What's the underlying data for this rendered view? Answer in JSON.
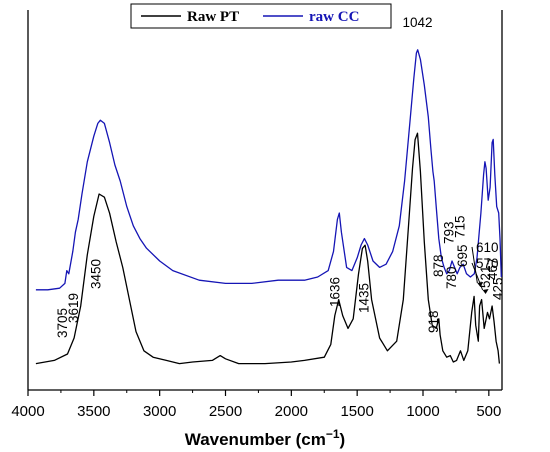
{
  "chart_data": {
    "type": "line",
    "title": "",
    "xlabel": "Wavenumber (cm⁻¹)",
    "xlabel_main": "Wavenumber (cm",
    "xlabel_sup": "−1",
    "xlabel_close": ")",
    "ylabel": "",
    "xlim": [
      4000,
      400
    ],
    "x_reversed": true,
    "x_ticks": [
      4000,
      3500,
      3000,
      2500,
      2000,
      1500,
      1000,
      500
    ],
    "x_tick_labels": [
      "4000",
      "3500",
      "3000",
      "2500",
      "2000",
      "1500",
      "1000",
      "500"
    ],
    "y_axis_visible": false,
    "grid": false,
    "legend_position": "top-center",
    "series": [
      {
        "name": "Raw PT",
        "color": "#000000",
        "points": [
          [
            3940,
            0.02
          ],
          [
            3800,
            0.03
          ],
          [
            3700,
            0.05
          ],
          [
            3650,
            0.1
          ],
          [
            3600,
            0.2
          ],
          [
            3550,
            0.36
          ],
          [
            3500,
            0.48
          ],
          [
            3460,
            0.55
          ],
          [
            3420,
            0.54
          ],
          [
            3380,
            0.49
          ],
          [
            3330,
            0.4
          ],
          [
            3280,
            0.32
          ],
          [
            3230,
            0.22
          ],
          [
            3180,
            0.12
          ],
          [
            3120,
            0.06
          ],
          [
            3050,
            0.04
          ],
          [
            2950,
            0.03
          ],
          [
            2850,
            0.02
          ],
          [
            2750,
            0.025
          ],
          [
            2600,
            0.03
          ],
          [
            2540,
            0.045
          ],
          [
            2500,
            0.035
          ],
          [
            2400,
            0.02
          ],
          [
            2200,
            0.02
          ],
          [
            2000,
            0.025
          ],
          [
            1900,
            0.03
          ],
          [
            1750,
            0.04
          ],
          [
            1700,
            0.08
          ],
          [
            1670,
            0.17
          ],
          [
            1640,
            0.22
          ],
          [
            1610,
            0.17
          ],
          [
            1570,
            0.13
          ],
          [
            1530,
            0.16
          ],
          [
            1490,
            0.3
          ],
          [
            1460,
            0.38
          ],
          [
            1440,
            0.39
          ],
          [
            1420,
            0.34
          ],
          [
            1390,
            0.22
          ],
          [
            1330,
            0.1
          ],
          [
            1270,
            0.06
          ],
          [
            1200,
            0.09
          ],
          [
            1150,
            0.22
          ],
          [
            1110,
            0.45
          ],
          [
            1080,
            0.63
          ],
          [
            1060,
            0.72
          ],
          [
            1042,
            0.74
          ],
          [
            1020,
            0.62
          ],
          [
            990,
            0.4
          ],
          [
            960,
            0.22
          ],
          [
            930,
            0.14
          ],
          [
            900,
            0.13
          ],
          [
            880,
            0.16
          ],
          [
            870,
            0.11
          ],
          [
            850,
            0.06
          ],
          [
            820,
            0.04
          ],
          [
            793,
            0.045
          ],
          [
            770,
            0.025
          ],
          [
            745,
            0.03
          ],
          [
            715,
            0.06
          ],
          [
            690,
            0.03
          ],
          [
            660,
            0.06
          ],
          [
            630,
            0.18
          ],
          [
            612,
            0.23
          ],
          [
            600,
            0.14
          ],
          [
            580,
            0.09
          ],
          [
            570,
            0.2
          ],
          [
            555,
            0.22
          ],
          [
            535,
            0.13
          ],
          [
            510,
            0.18
          ],
          [
            495,
            0.16
          ],
          [
            475,
            0.2
          ],
          [
            460,
            0.15
          ],
          [
            445,
            0.09
          ],
          [
            430,
            0.06
          ],
          [
            420,
            0.02
          ]
        ]
      },
      {
        "name": "raw CC",
        "color": "#1515b5",
        "points": [
          [
            3940,
            0.26
          ],
          [
            3850,
            0.26
          ],
          [
            3760,
            0.265
          ],
          [
            3720,
            0.28
          ],
          [
            3705,
            0.32
          ],
          [
            3690,
            0.31
          ],
          [
            3660,
            0.38
          ],
          [
            3640,
            0.44
          ],
          [
            3619,
            0.48
          ],
          [
            3590,
            0.56
          ],
          [
            3550,
            0.66
          ],
          [
            3500,
            0.74
          ],
          [
            3470,
            0.78
          ],
          [
            3450,
            0.79
          ],
          [
            3420,
            0.78
          ],
          [
            3380,
            0.72
          ],
          [
            3340,
            0.65
          ],
          [
            3300,
            0.6
          ],
          [
            3250,
            0.52
          ],
          [
            3200,
            0.46
          ],
          [
            3150,
            0.42
          ],
          [
            3100,
            0.39
          ],
          [
            3000,
            0.35
          ],
          [
            2900,
            0.32
          ],
          [
            2700,
            0.29
          ],
          [
            2500,
            0.28
          ],
          [
            2300,
            0.28
          ],
          [
            2100,
            0.29
          ],
          [
            1900,
            0.29
          ],
          [
            1800,
            0.3
          ],
          [
            1720,
            0.32
          ],
          [
            1680,
            0.38
          ],
          [
            1650,
            0.48
          ],
          [
            1636,
            0.5
          ],
          [
            1620,
            0.44
          ],
          [
            1580,
            0.33
          ],
          [
            1540,
            0.32
          ],
          [
            1500,
            0.36
          ],
          [
            1470,
            0.4
          ],
          [
            1445,
            0.42
          ],
          [
            1420,
            0.4
          ],
          [
            1380,
            0.35
          ],
          [
            1330,
            0.33
          ],
          [
            1280,
            0.34
          ],
          [
            1230,
            0.38
          ],
          [
            1180,
            0.46
          ],
          [
            1140,
            0.6
          ],
          [
            1100,
            0.78
          ],
          [
            1070,
            0.92
          ],
          [
            1050,
            1.0
          ],
          [
            1040,
            1.01
          ],
          [
            1020,
            0.98
          ],
          [
            990,
            0.9
          ],
          [
            960,
            0.8
          ],
          [
            940,
            0.7
          ],
          [
            925,
            0.63
          ],
          [
            915,
            0.6
          ],
          [
            900,
            0.52
          ],
          [
            880,
            0.42
          ],
          [
            860,
            0.36
          ],
          [
            840,
            0.33
          ],
          [
            820,
            0.31
          ],
          [
            800,
            0.32
          ],
          [
            780,
            0.35
          ],
          [
            760,
            0.33
          ],
          [
            740,
            0.31
          ],
          [
            720,
            0.33
          ],
          [
            695,
            0.34
          ],
          [
            670,
            0.31
          ],
          [
            640,
            0.3
          ],
          [
            610,
            0.31
          ],
          [
            590,
            0.36
          ],
          [
            560,
            0.5
          ],
          [
            540,
            0.62
          ],
          [
            530,
            0.66
          ],
          [
            521,
            0.64
          ],
          [
            505,
            0.54
          ],
          [
            490,
            0.58
          ],
          [
            475,
            0.72
          ],
          [
            467,
            0.73
          ],
          [
            455,
            0.62
          ],
          [
            440,
            0.52
          ],
          [
            425,
            0.5
          ],
          [
            415,
            0.42
          ],
          [
            405,
            0.3
          ]
        ]
      }
    ],
    "annotations": [
      {
        "label": "3705",
        "x": 3705,
        "rotated": true,
        "arrow": false
      },
      {
        "label": "3619",
        "x": 3619,
        "rotated": true,
        "arrow": false
      },
      {
        "label": "3450",
        "x": 3450,
        "rotated": true,
        "arrow": false
      },
      {
        "label": "1636",
        "x": 1636,
        "rotated": true,
        "arrow": false
      },
      {
        "label": "1435",
        "x": 1435,
        "rotated": true,
        "arrow": false
      },
      {
        "label": "1042",
        "x": 1042,
        "rotated": false,
        "arrow": false
      },
      {
        "label": "918",
        "x": 918,
        "rotated": true,
        "arrow": false
      },
      {
        "label": "878",
        "x": 878,
        "rotated": true,
        "arrow": false
      },
      {
        "label": "780",
        "x": 780,
        "rotated": true,
        "arrow": false
      },
      {
        "label": "695",
        "x": 695,
        "rotated": true,
        "arrow": false
      },
      {
        "label": "793",
        "x": 793,
        "rotated": true,
        "arrow": false
      },
      {
        "label": "715",
        "x": 715,
        "rotated": true,
        "arrow": false
      },
      {
        "label": "521",
        "x": 521,
        "rotated": true,
        "arrow": false
      },
      {
        "label": "467",
        "x": 467,
        "rotated": true,
        "arrow": false
      },
      {
        "label": "425",
        "x": 425,
        "rotated": true,
        "arrow": false
      },
      {
        "label": "610",
        "x": 610,
        "rotated": false,
        "arrow": true
      },
      {
        "label": "570",
        "x": 570,
        "rotated": false,
        "arrow": true
      }
    ]
  }
}
